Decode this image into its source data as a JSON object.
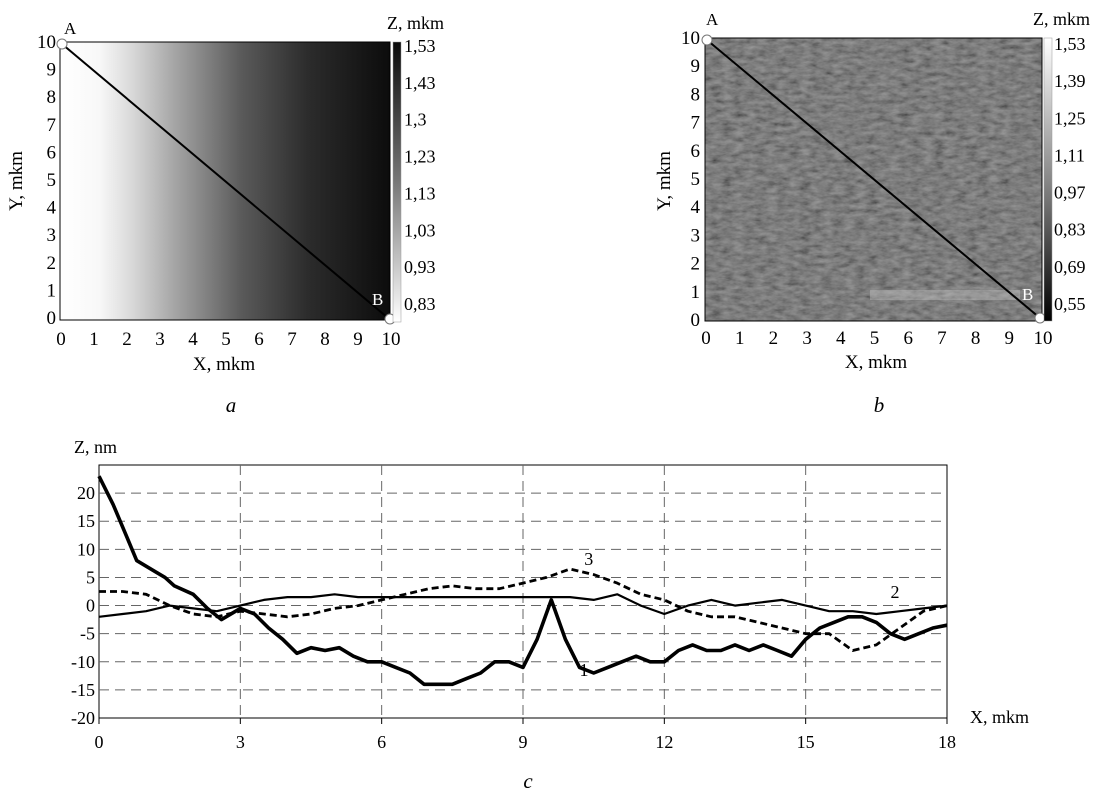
{
  "panels": {
    "a": {
      "caption": "a",
      "x_label": "X, mkm",
      "y_label": "Y, mkm",
      "colorbar_title": "Z, mkm",
      "colorbar_ticks": [
        "1,53",
        "1,43",
        "1,3",
        "1,23",
        "1,13",
        "1,03",
        "0,93",
        "0,83"
      ],
      "point_a": "A",
      "point_b": "B",
      "x_ticks": [
        "0",
        "1",
        "2",
        "3",
        "4",
        "5",
        "6",
        "7",
        "8",
        "9",
        "10"
      ],
      "y_ticks": [
        "0",
        "1",
        "2",
        "3",
        "4",
        "5",
        "6",
        "7",
        "8",
        "9",
        "10"
      ],
      "map_style": "horizontal gradient, light left to dark right"
    },
    "b": {
      "caption": "b",
      "x_label": "X, mkm",
      "y_label": "Y, mkm",
      "colorbar_title": "Z, mkm",
      "colorbar_ticks": [
        "1,53",
        "1,39",
        "1,25",
        "1,11",
        "0,97",
        "0,83",
        "0,69",
        "0,55"
      ],
      "point_a": "A",
      "point_b": "B",
      "x_ticks": [
        "0",
        "1",
        "2",
        "3",
        "4",
        "5",
        "6",
        "7",
        "8",
        "9",
        "10"
      ],
      "y_ticks": [
        "0",
        "1",
        "2",
        "3",
        "4",
        "5",
        "6",
        "7",
        "8",
        "9",
        "10"
      ],
      "map_style": "grey textured surface"
    }
  },
  "chart_data": {
    "type": "line",
    "caption": "c",
    "xlabel": "X, mkm",
    "ylabel": "Z, nm",
    "xlim": [
      0,
      18
    ],
    "ylim": [
      -20,
      25
    ],
    "x_ticks": [
      0,
      3,
      6,
      9,
      12,
      15,
      18
    ],
    "y_ticks": [
      -20,
      -15,
      -10,
      -5,
      0,
      5,
      10,
      15,
      20
    ],
    "grid": "dashed",
    "series": [
      {
        "name": "1",
        "style": "thick",
        "color": "#000000",
        "x": [
          0,
          0.3,
          0.6,
          0.8,
          1.0,
          1.2,
          1.4,
          1.6,
          2.0,
          2.3,
          2.6,
          3.0,
          3.3,
          3.6,
          3.9,
          4.2,
          4.5,
          4.8,
          5.1,
          5.4,
          5.7,
          6.0,
          6.3,
          6.6,
          6.9,
          7.2,
          7.5,
          7.8,
          8.1,
          8.4,
          8.7,
          9.0,
          9.3,
          9.6,
          9.9,
          10.2,
          10.5,
          10.8,
          11.1,
          11.4,
          11.7,
          12.0,
          12.3,
          12.6,
          12.9,
          13.2,
          13.5,
          13.8,
          14.1,
          14.4,
          14.7,
          15.0,
          15.3,
          15.6,
          15.9,
          16.2,
          16.5,
          16.8,
          17.1,
          17.4,
          17.7,
          18.0
        ],
        "y": [
          23,
          18,
          12,
          8,
          7,
          6,
          5,
          3.5,
          2,
          -0.5,
          -2.5,
          -0.5,
          -1.5,
          -4,
          -6,
          -8.5,
          -7.5,
          -8,
          -7.5,
          -9,
          -10,
          -10,
          -11,
          -12,
          -14,
          -14,
          -14,
          -13,
          -12,
          -10,
          -10,
          -11,
          -6,
          1,
          -6,
          -11,
          -12,
          -11,
          -10,
          -9,
          -10,
          -10,
          -8,
          -7,
          -8,
          -8,
          -7,
          -8,
          -7,
          -8,
          -9,
          -6,
          -4,
          -3,
          -2,
          -2,
          -3,
          -5,
          -6,
          -5,
          -4,
          -3.5
        ]
      },
      {
        "name": "2",
        "style": "medium",
        "color": "#000000",
        "x": [
          0,
          0.5,
          1.0,
          1.5,
          2.0,
          2.5,
          3.0,
          3.5,
          4.0,
          4.5,
          5.0,
          5.5,
          6.0,
          6.5,
          7.0,
          7.5,
          8.0,
          8.5,
          9.0,
          9.5,
          10.0,
          10.5,
          11.0,
          11.5,
          12.0,
          12.5,
          13.0,
          13.5,
          14.0,
          14.5,
          15.0,
          15.5,
          16.0,
          16.5,
          17.0,
          17.5,
          18.0
        ],
        "y": [
          -2,
          -1.5,
          -1,
          0,
          -0.5,
          -1,
          0,
          1,
          1.5,
          1.5,
          2,
          1.5,
          1.5,
          1.5,
          1.5,
          1.5,
          1.5,
          1.5,
          1.5,
          1.5,
          1.5,
          1,
          2,
          0,
          -1.5,
          0,
          1,
          0,
          0.5,
          1,
          0,
          -1,
          -1,
          -1.5,
          -1,
          -0.5,
          0
        ]
      },
      {
        "name": "3",
        "style": "dashed",
        "color": "#000000",
        "x": [
          0,
          0.5,
          1.0,
          1.5,
          2.0,
          2.5,
          3.0,
          3.5,
          4.0,
          4.5,
          5.0,
          5.5,
          6.0,
          6.5,
          7.0,
          7.5,
          8.0,
          8.5,
          9.0,
          9.5,
          10.0,
          10.5,
          11.0,
          11.5,
          12.0,
          12.5,
          13.0,
          13.5,
          14.0,
          14.5,
          15.0,
          15.5,
          16.0,
          16.5,
          17.0,
          17.5,
          18.0
        ],
        "y": [
          2.5,
          2.5,
          2,
          0,
          -1.5,
          -2,
          -1,
          -1.5,
          -2,
          -1.5,
          -0.5,
          0,
          1,
          2,
          3,
          3.5,
          3,
          3,
          4,
          5,
          6.5,
          5.5,
          4,
          2,
          1,
          -1,
          -2,
          -2,
          -3,
          -4,
          -5,
          -5,
          -8,
          -7,
          -4,
          -1,
          0
        ]
      }
    ]
  }
}
